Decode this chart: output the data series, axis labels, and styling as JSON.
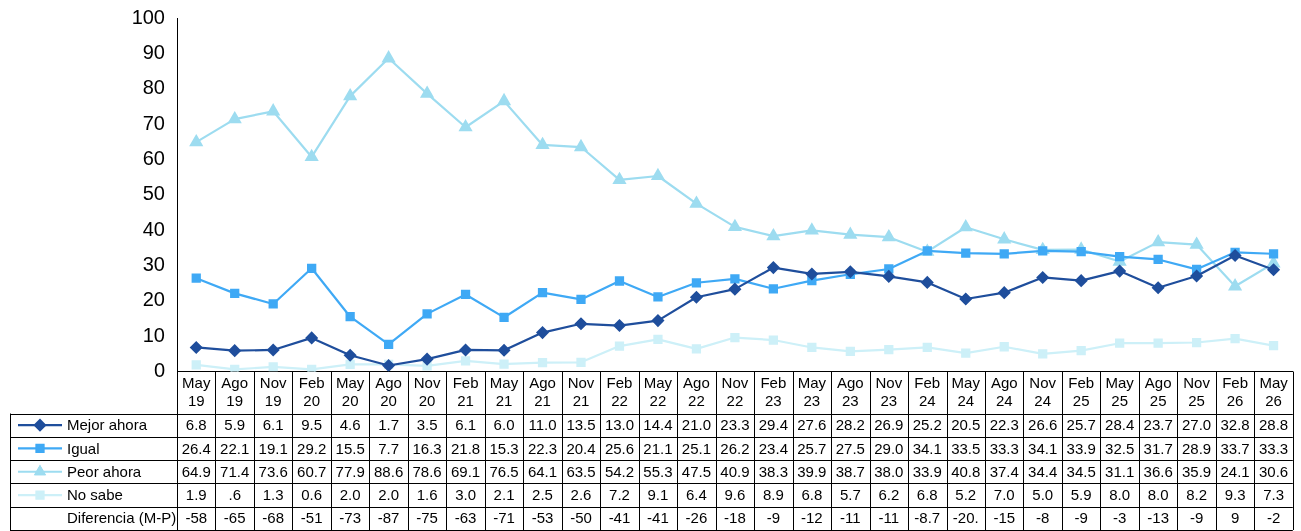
{
  "chart_data": {
    "type": "line",
    "categories": [
      "May 19",
      "Ago 19",
      "Nov 19",
      "Feb 20",
      "May 20",
      "Ago 20",
      "Nov 20",
      "Feb 21",
      "May 21",
      "Ago 21",
      "Nov 21",
      "Feb 22",
      "May 22",
      "Ago 22",
      "Nov 22",
      "Feb 23",
      "May 23",
      "Ago 23",
      "Nov 23",
      "Feb 24",
      "May 24",
      "Ago 24",
      "Nov 24",
      "Feb 25",
      "May 25",
      "Ago 25",
      "Nov 25",
      "Feb 26",
      "May 26"
    ],
    "ylim": [
      0,
      100
    ],
    "yticks": [
      0,
      10,
      20,
      30,
      40,
      50,
      60,
      70,
      80,
      90,
      100
    ],
    "grid": false,
    "legend": "bottom left",
    "line_style": "solid",
    "series": [
      {
        "name": "Mejor ahora",
        "color": "#1f4e9c",
        "marker": "diamond",
        "values": [
          6.8,
          5.9,
          6.1,
          9.5,
          4.6,
          1.7,
          3.5,
          6.1,
          6.0,
          11.0,
          13.5,
          13.0,
          14.4,
          21.0,
          23.3,
          29.4,
          27.6,
          28.2,
          26.9,
          25.2,
          20.5,
          22.3,
          26.6,
          25.7,
          28.4,
          23.7,
          27.0,
          32.8,
          28.8
        ],
        "value_labels": [
          "6.8",
          "5.9",
          "6.1",
          "9.5",
          "4.6",
          "1.7",
          "3.5",
          "6.1",
          "6.0",
          "11.0",
          "13.5",
          "13.0",
          "14.4",
          "21.0",
          "23.3",
          "29.4",
          "27.6",
          "28.2",
          "26.9",
          "25.2",
          "20.5",
          "22.3",
          "26.6",
          "25.7",
          "28.4",
          "23.7",
          "27.0",
          "32.8",
          "28.8"
        ]
      },
      {
        "name": "Igual",
        "color": "#3fa9f5",
        "marker": "square",
        "values": [
          26.4,
          22.1,
          19.1,
          29.2,
          15.5,
          7.7,
          16.3,
          21.8,
          15.3,
          22.3,
          20.4,
          25.6,
          21.1,
          25.1,
          26.2,
          23.4,
          25.7,
          27.5,
          29.0,
          34.1,
          33.5,
          33.3,
          34.1,
          33.9,
          32.5,
          31.7,
          28.9,
          33.7,
          33.3
        ],
        "value_labels": [
          "26.4",
          "22.1",
          "19.1",
          "29.2",
          "15.5",
          "7.7",
          "16.3",
          "21.8",
          "15.3",
          "22.3",
          "20.4",
          "25.6",
          "21.1",
          "25.1",
          "26.2",
          "23.4",
          "25.7",
          "27.5",
          "29.0",
          "34.1",
          "33.5",
          "33.3",
          "34.1",
          "33.9",
          "32.5",
          "31.7",
          "28.9",
          "33.7",
          "33.3"
        ]
      },
      {
        "name": "Peor ahora",
        "color": "#9ddcf0",
        "marker": "triangle",
        "values": [
          64.9,
          71.4,
          73.6,
          60.7,
          77.9,
          88.6,
          78.6,
          69.1,
          76.5,
          64.1,
          63.5,
          54.2,
          55.3,
          47.5,
          40.9,
          38.3,
          39.9,
          38.7,
          38.0,
          33.9,
          40.8,
          37.4,
          34.4,
          34.5,
          31.1,
          36.6,
          35.9,
          24.1,
          30.6
        ],
        "value_labels": [
          "64.9",
          "71.4",
          "73.6",
          "60.7",
          "77.9",
          "88.6",
          "78.6",
          "69.1",
          "76.5",
          "64.1",
          "63.5",
          "54.2",
          "55.3",
          "47.5",
          "40.9",
          "38.3",
          "39.9",
          "38.7",
          "38.0",
          "33.9",
          "40.8",
          "37.4",
          "34.4",
          "34.5",
          "31.1",
          "36.6",
          "35.9",
          "24.1",
          "30.6"
        ]
      },
      {
        "name": "No sabe",
        "color": "#cdf0f8",
        "marker": "square",
        "values": [
          1.9,
          0.6,
          1.3,
          0.6,
          2.0,
          2.0,
          1.6,
          3.0,
          2.1,
          2.5,
          2.6,
          7.2,
          9.1,
          6.4,
          9.6,
          8.9,
          6.8,
          5.7,
          6.2,
          6.8,
          5.2,
          7.0,
          5.0,
          5.9,
          8.0,
          8.0,
          8.2,
          9.3,
          7.3
        ],
        "value_labels": [
          "1.9",
          ".6",
          "1.3",
          "0.6",
          "2.0",
          "2.0",
          "1.6",
          "3.0",
          "2.1",
          "2.5",
          "2.6",
          "7.2",
          "9.1",
          "6.4",
          "9.6",
          "8.9",
          "6.8",
          "5.7",
          "6.2",
          "6.8",
          "5.2",
          "7.0",
          "5.0",
          "5.9",
          "8.0",
          "8.0",
          "8.2",
          "9.3",
          "7.3"
        ]
      }
    ],
    "annotations": [
      "Diferencia (M-P)",
      "-58",
      "-65",
      "-68",
      "-51",
      "-73",
      "-87",
      "-75",
      "-63",
      "-71",
      "-53",
      "-50",
      "-41",
      "-41",
      "-26",
      "-18",
      "-9",
      "-12",
      "-11",
      "-11",
      "-8.7",
      "-20.",
      "-15",
      "-8",
      "-9",
      "-3",
      "-13",
      "-9",
      "9",
      "-2"
    ]
  }
}
